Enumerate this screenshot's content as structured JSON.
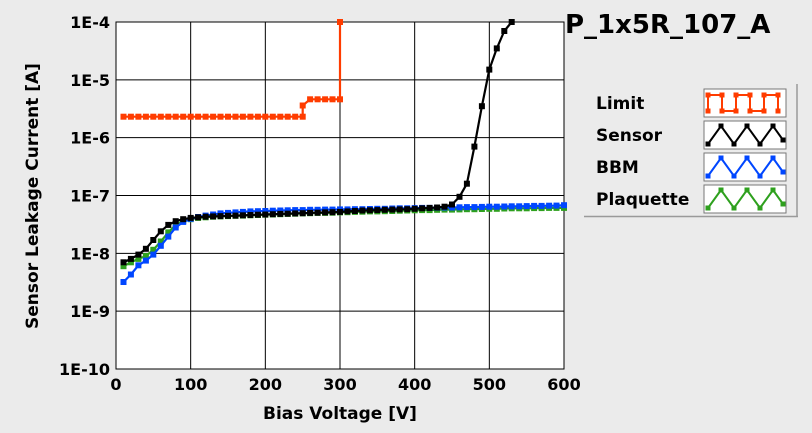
{
  "chart_data": {
    "type": "line",
    "title": "P_1x5R_107_A",
    "xlabel": "Bias Voltage [V]",
    "ylabel": "Sensor Leakage Current [A]",
    "xlim": [
      0,
      600
    ],
    "ylim": [
      1e-10,
      0.0001
    ],
    "y_scale": "log",
    "grid": true,
    "legend_position": "right",
    "x_ticks": [
      0,
      100,
      200,
      300,
      400,
      500,
      600
    ],
    "x_tick_labels": [
      "0",
      "100",
      "200",
      "300",
      "400",
      "500",
      "600"
    ],
    "y_ticks": [
      1e-10,
      1e-09,
      1e-08,
      1e-07,
      1e-06,
      1e-05,
      0.0001
    ],
    "y_tick_labels": [
      "1E-10",
      "1E-9",
      "1E-8",
      "1E-7",
      "1E-6",
      "1E-5",
      "1E-4"
    ],
    "series": [
      {
        "name": "Limit",
        "color": "#ff3c00",
        "x": [
          10,
          20,
          30,
          40,
          50,
          60,
          70,
          80,
          90,
          100,
          110,
          120,
          130,
          140,
          150,
          160,
          170,
          180,
          190,
          200,
          210,
          220,
          230,
          240,
          250,
          250,
          260,
          270,
          280,
          290,
          300,
          300
        ],
        "y": [
          2.3e-06,
          2.3e-06,
          2.3e-06,
          2.3e-06,
          2.3e-06,
          2.3e-06,
          2.3e-06,
          2.3e-06,
          2.3e-06,
          2.3e-06,
          2.3e-06,
          2.3e-06,
          2.3e-06,
          2.3e-06,
          2.3e-06,
          2.3e-06,
          2.3e-06,
          2.3e-06,
          2.3e-06,
          2.3e-06,
          2.3e-06,
          2.3e-06,
          2.3e-06,
          2.3e-06,
          2.3e-06,
          3.6e-06,
          4.6e-06,
          4.6e-06,
          4.6e-06,
          4.6e-06,
          4.6e-06,
          0.0001
        ]
      },
      {
        "name": "Sensor",
        "color": "#000000",
        "x": [
          10,
          20,
          30,
          40,
          50,
          60,
          70,
          80,
          90,
          100,
          110,
          120,
          130,
          140,
          150,
          160,
          170,
          180,
          190,
          200,
          210,
          220,
          230,
          240,
          250,
          260,
          270,
          280,
          290,
          300,
          310,
          320,
          330,
          340,
          350,
          360,
          370,
          380,
          390,
          400,
          410,
          420,
          430,
          440,
          450,
          460,
          470,
          480,
          490,
          500,
          510,
          520,
          530
        ],
        "y": [
          7e-09,
          8e-09,
          9.5e-09,
          1.2e-08,
          1.7e-08,
          2.4e-08,
          3.1e-08,
          3.6e-08,
          3.9e-08,
          4.1e-08,
          4.2e-08,
          4.3e-08,
          4.35e-08,
          4.4e-08,
          4.45e-08,
          4.5e-08,
          4.55e-08,
          4.6e-08,
          4.65e-08,
          4.7e-08,
          4.75e-08,
          4.8e-08,
          4.85e-08,
          4.9e-08,
          4.95e-08,
          5e-08,
          5.05e-08,
          5.1e-08,
          5.15e-08,
          5.2e-08,
          5.3e-08,
          5.4e-08,
          5.5e-08,
          5.55e-08,
          5.6e-08,
          5.65e-08,
          5.7e-08,
          5.75e-08,
          5.8e-08,
          5.9e-08,
          6e-08,
          6.1e-08,
          6.2e-08,
          6.4e-08,
          7e-08,
          9.5e-08,
          1.6e-07,
          7e-07,
          3.5e-06,
          1.5e-05,
          3.5e-05,
          7e-05,
          0.0001
        ]
      },
      {
        "name": "BBM",
        "color": "#0046ff",
        "x": [
          10,
          20,
          30,
          40,
          50,
          60,
          70,
          80,
          90,
          100,
          110,
          120,
          130,
          140,
          150,
          160,
          170,
          180,
          190,
          200,
          210,
          220,
          230,
          240,
          250,
          260,
          270,
          280,
          290,
          300,
          310,
          320,
          330,
          340,
          350,
          360,
          370,
          380,
          390,
          400,
          410,
          420,
          430,
          440,
          450,
          460,
          470,
          480,
          490,
          500,
          510,
          520,
          530,
          540,
          550,
          560,
          570,
          580,
          590,
          600
        ],
        "y": [
          3.2e-09,
          4.3e-09,
          6.2e-09,
          7.5e-09,
          9.5e-09,
          1.35e-08,
          1.95e-08,
          2.8e-08,
          3.5e-08,
          3.95e-08,
          4.25e-08,
          4.5e-08,
          4.7e-08,
          4.9e-08,
          5e-08,
          5.1e-08,
          5.2e-08,
          5.3e-08,
          5.35e-08,
          5.4e-08,
          5.45e-08,
          5.5e-08,
          5.55e-08,
          5.6e-08,
          5.6e-08,
          5.65e-08,
          5.65e-08,
          5.7e-08,
          5.7e-08,
          5.75e-08,
          5.75e-08,
          5.8e-08,
          5.8e-08,
          5.85e-08,
          5.9e-08,
          5.9e-08,
          5.95e-08,
          6e-08,
          6e-08,
          6.05e-08,
          6.1e-08,
          6.1e-08,
          6.15e-08,
          6.2e-08,
          6.2e-08,
          6.25e-08,
          6.3e-08,
          6.3e-08,
          6.35e-08,
          6.4e-08,
          6.4e-08,
          6.45e-08,
          6.5e-08,
          6.5e-08,
          6.55e-08,
          6.6e-08,
          6.6e-08,
          6.65e-08,
          6.7e-08,
          6.8e-08
        ]
      },
      {
        "name": "Plaquette",
        "color": "#2ea01e",
        "x": [
          10,
          20,
          30,
          40,
          50,
          60,
          70,
          80,
          90,
          100,
          110,
          120,
          130,
          140,
          150,
          160,
          170,
          180,
          190,
          200,
          210,
          220,
          230,
          240,
          250,
          260,
          270,
          280,
          290,
          300,
          310,
          320,
          330,
          340,
          350,
          360,
          370,
          380,
          390,
          400,
          410,
          420,
          430,
          440,
          450,
          460,
          470,
          480,
          490,
          500,
          510,
          520,
          530,
          540,
          550,
          560,
          570,
          580,
          590,
          600
        ],
        "y": [
          6e-09,
          7e-09,
          8e-09,
          9e-09,
          1.15e-08,
          1.6e-08,
          2.3e-08,
          3.1e-08,
          3.6e-08,
          3.9e-08,
          4.1e-08,
          4.2e-08,
          4.3e-08,
          4.35e-08,
          4.4e-08,
          4.45e-08,
          4.5e-08,
          4.55e-08,
          4.6e-08,
          4.65e-08,
          4.7e-08,
          4.75e-08,
          4.8e-08,
          4.85e-08,
          4.9e-08,
          4.95e-08,
          5e-08,
          5e-08,
          5.05e-08,
          5.1e-08,
          5.15e-08,
          5.2e-08,
          5.25e-08,
          5.3e-08,
          5.3e-08,
          5.35e-08,
          5.4e-08,
          5.45e-08,
          5.5e-08,
          5.55e-08,
          5.6e-08,
          5.6e-08,
          5.65e-08,
          5.7e-08,
          5.7e-08,
          5.75e-08,
          5.8e-08,
          5.8e-08,
          5.85e-08,
          5.9e-08,
          5.9e-08,
          5.95e-08,
          6e-08,
          6e-08,
          6e-08,
          6.05e-08,
          6.05e-08,
          6.1e-08,
          6.1e-08,
          6.1e-08
        ]
      }
    ]
  }
}
